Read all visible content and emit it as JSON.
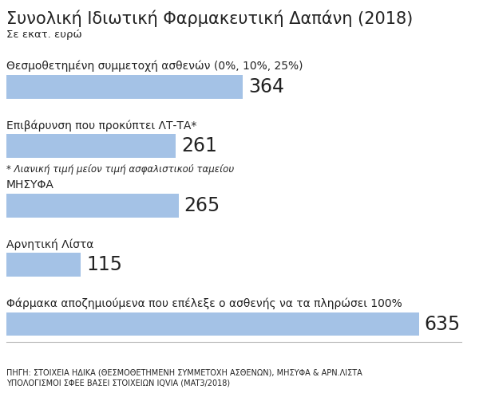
{
  "chart_data": {
    "type": "bar",
    "orientation": "horizontal",
    "title": "Συνολική Ιδιωτική Φαρμακευτική Δαπάνη (2018)",
    "subtitle": "Σε εκατ. ευρώ",
    "categories": [
      "Θεσμοθετημένη συμμετοχή ασθενών (0%, 10%, 25%)",
      "Επιβάρυνση που προκύπτει ΛΤ-ΤΑ*",
      "ΜΗΣΥΦΑ",
      "Αρνητική Λίστα",
      "Φάρμακα αποζημιούμενα που επέλεξε ο ασθενής να τα πληρώσει 100%"
    ],
    "values": [
      364,
      261,
      265,
      115,
      635
    ],
    "color": "#a4c2e6",
    "xlim": [
      0,
      700
    ],
    "tick_labels": false,
    "data_labels": true,
    "annotations": [
      {
        "category": "Επιβάρυνση που προκύπτει ΛΤ-ΤΑ*",
        "text": "* Λιανική τιμή μείον τιμή ασφαλιστικού ταμείου"
      }
    ],
    "source": "ΠΗΓΗ: ΣΤΟΙΧΕΙΑ ΗΔΙΚΑ (ΘΕΣΜΟΘΕΤΗΜΕΝΗ ΣΥΜΜΕΤΟΧΗ ΑΣΘΕΝΩΝ), ΜΗΣΥΦΑ & ΑΡΝ.ΛΙΣΤΑ\nΥΠΟΛΟΓΙΣΜΟΙ ΣΦΕΕ ΒΑΣΕΙ ΣΤΟΙΧΕΙΩΝ IQVIA (MAT3/2018)"
  }
}
